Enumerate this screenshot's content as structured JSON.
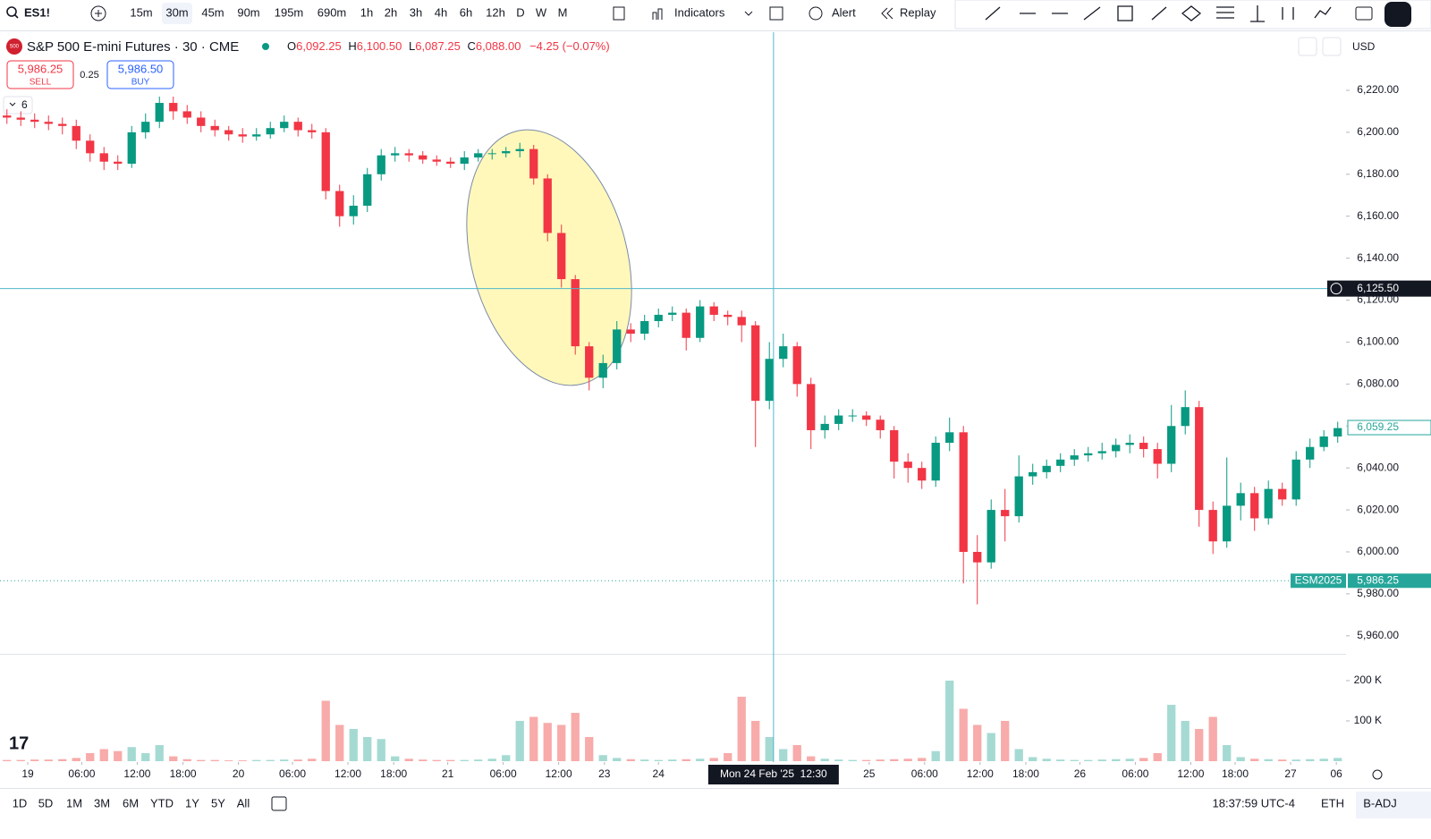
{
  "toolbar": {
    "symbol": "ES1!",
    "intervals": [
      "15m",
      "30m",
      "45m",
      "90m",
      "195m",
      "690m",
      "1h",
      "2h",
      "3h",
      "4h",
      "6h",
      "12h",
      "D",
      "W",
      "M"
    ],
    "active_index": 1,
    "indicators": "Indicators",
    "alert": "Alert",
    "replay": "Replay"
  },
  "legend": {
    "logo": "500",
    "title": "S&P 500 E-mini Futures · 30 · CME",
    "o_label": "O",
    "open": "6,092.25",
    "h_label": "H",
    "high": "6,100.50",
    "l_label": "L",
    "low": "6,087.25",
    "c_label": "C",
    "close": "6,088.00",
    "change": "−4.25 (−0.07%)"
  },
  "trade": {
    "sell_price": "5,986.25",
    "sell": "SELL",
    "spread": "0.25",
    "buy_price": "5,986.50",
    "buy": "BUY",
    "indicators_count": "6"
  },
  "currency": "USD",
  "chart_data": {
    "type": "candlestick",
    "up_color": "#089981",
    "down_color": "#f23645",
    "open": [
      6208,
      6207,
      6206,
      6205,
      6204,
      6203,
      6196,
      6190,
      6186,
      6185,
      6200,
      6205,
      6214,
      6210,
      6207,
      6203,
      6201,
      6199,
      6198,
      6199,
      6202,
      6205,
      6201,
      6200,
      6172,
      6160,
      6165,
      6180,
      6189,
      6190,
      6189,
      6187,
      6186,
      6185,
      6188,
      6190,
      6190,
      6191,
      6192,
      6178,
      6152,
      6130,
      6098,
      6083,
      6090,
      6106,
      6104,
      6110,
      6113,
      6114,
      6102,
      6117,
      6113,
      6112,
      6108,
      6072,
      6092,
      6098,
      6080,
      6058,
      6061,
      6065,
      6065,
      6063,
      6058,
      6043,
      6040,
      6034,
      6052,
      6057,
      6000,
      5995,
      6020,
      6017,
      6036,
      6038,
      6041,
      6044,
      6046,
      6047,
      6048,
      6051,
      6052,
      6049,
      6042,
      6060,
      6069,
      6020,
      6005,
      6022,
      6028,
      6016,
      6030,
      6025,
      6044,
      6050,
      6055
    ],
    "high": [
      6211,
      6210,
      6209,
      6208,
      6207,
      6206,
      6199,
      6193,
      6189,
      6203,
      6209,
      6217,
      6217,
      6213,
      6210,
      6206,
      6203,
      6202,
      6202,
      6205,
      6208,
      6207,
      6204,
      6202,
      6175,
      6170,
      6183,
      6192,
      6193,
      6192,
      6191,
      6189,
      6188,
      6191,
      6192,
      6192,
      6193,
      6195,
      6194,
      6180,
      6156,
      6132,
      6100,
      6094,
      6110,
      6109,
      6113,
      6116,
      6117,
      6116,
      6120,
      6119,
      6115,
      6115,
      6110,
      6100,
      6104,
      6100,
      6083,
      6065,
      6068,
      6068,
      6067,
      6065,
      6060,
      6047,
      6043,
      6055,
      6064,
      6060,
      6008,
      6025,
      6030,
      6046,
      6042,
      6044,
      6047,
      6049,
      6050,
      6052,
      6054,
      6056,
      6055,
      6052,
      6070,
      6077,
      6072,
      6024,
      6045,
      6033,
      6031,
      6034,
      6033,
      6048,
      6054,
      6058,
      6062
    ],
    "low": [
      6204,
      6203,
      6202,
      6201,
      6199,
      6192,
      6186,
      6182,
      6182,
      6183,
      6197,
      6202,
      6206,
      6204,
      6200,
      6198,
      6196,
      6195,
      6196,
      6197,
      6200,
      6198,
      6197,
      6168,
      6155,
      6156,
      6162,
      6177,
      6186,
      6186,
      6185,
      6184,
      6183,
      6182,
      6186,
      6187,
      6188,
      6188,
      6175,
      6148,
      6126,
      6094,
      6077,
      6078,
      6087,
      6100,
      6101,
      6107,
      6110,
      6096,
      6100,
      6110,
      6108,
      6100,
      6050,
      6068,
      6088,
      6074,
      6049,
      6054,
      6058,
      6062,
      6060,
      6054,
      6035,
      6033,
      6030,
      6031,
      6048,
      5985,
      5975,
      5992,
      6005,
      6014,
      6032,
      6035,
      6038,
      6041,
      6043,
      6044,
      6045,
      6047,
      6045,
      6035,
      6038,
      6056,
      6012,
      5999,
      6002,
      6015,
      6010,
      6013,
      6022,
      6022,
      6040,
      6048,
      6052
    ],
    "close": [
      6207,
      6206,
      6205,
      6204,
      6203,
      6196,
      6190,
      6186,
      6185,
      6200,
      6205,
      6214,
      6210,
      6207,
      6203,
      6201,
      6199,
      6198,
      6199,
      6202,
      6205,
      6201,
      6200,
      6172,
      6160,
      6165,
      6180,
      6189,
      6190,
      6189,
      6187,
      6186,
      6185,
      6188,
      6190,
      6190,
      6191,
      6192,
      6178,
      6152,
      6130,
      6098,
      6083,
      6090,
      6106,
      6104,
      6110,
      6113,
      6114,
      6102,
      6117,
      6113,
      6112,
      6108,
      6072,
      6092,
      6098,
      6080,
      6058,
      6061,
      6065,
      6065,
      6063,
      6058,
      6043,
      6040,
      6034,
      6052,
      6057,
      6000,
      5995,
      6020,
      6017,
      6036,
      6038,
      6041,
      6044,
      6046,
      6047,
      6048,
      6051,
      6052,
      6049,
      6042,
      6060,
      6069,
      6020,
      6005,
      6022,
      6028,
      6016,
      6030,
      6025,
      6044,
      6050,
      6055,
      6059
    ],
    "xlim": [
      -0.5,
      96.6
    ],
    "ylim": [
      5951.4,
      6247.7
    ],
    "yticks": [
      {
        "value": 6220,
        "label": "6,220.00"
      },
      {
        "value": 6200,
        "label": "6,200.00"
      },
      {
        "value": 6180,
        "label": "6,180.00"
      },
      {
        "value": 6160,
        "label": "6,160.00"
      },
      {
        "value": 6140,
        "label": "6,140.00"
      },
      {
        "value": 6120,
        "label": "6,120.00"
      },
      {
        "value": 6100,
        "label": "6,100.00"
      },
      {
        "value": 6080,
        "label": "6,080.00"
      },
      {
        "value": 6060,
        "label": "6,060.00"
      },
      {
        "value": 6040,
        "label": "6,040.00"
      },
      {
        "value": 6020,
        "label": "6,020.00"
      },
      {
        "value": 6000,
        "label": "6,000.00"
      },
      {
        "value": 5980,
        "label": "5,980.00"
      },
      {
        "value": 5960,
        "label": "5,960.00"
      }
    ],
    "xticks": [
      {
        "value": 1.5,
        "label": "19"
      },
      {
        "value": 5.4,
        "label": "06:00"
      },
      {
        "value": 9.4,
        "label": "12:00"
      },
      {
        "value": 12.7,
        "label": "18:00"
      },
      {
        "value": 16.7,
        "label": "20"
      },
      {
        "value": 20.6,
        "label": "06:00"
      },
      {
        "value": 24.6,
        "label": "12:00"
      },
      {
        "value": 27.9,
        "label": "18:00"
      },
      {
        "value": 31.8,
        "label": "21"
      },
      {
        "value": 35.8,
        "label": "06:00"
      },
      {
        "value": 39.8,
        "label": "12:00"
      },
      {
        "value": 43.1,
        "label": "23"
      },
      {
        "value": 47.0,
        "label": "24"
      },
      {
        "value": 62.2,
        "label": "25"
      },
      {
        "value": 66.2,
        "label": "06:00"
      },
      {
        "value": 70.2,
        "label": "12:00"
      },
      {
        "value": 73.5,
        "label": "18:00"
      },
      {
        "value": 77.4,
        "label": "26"
      },
      {
        "value": 81.4,
        "label": "06:00"
      },
      {
        "value": 85.4,
        "label": "12:00"
      },
      {
        "value": 88.6,
        "label": "18:00"
      },
      {
        "value": 92.6,
        "label": "27"
      },
      {
        "value": 95.9,
        "label": "06"
      }
    ],
    "crosshair": {
      "price": 6125.5,
      "price_label": "6,125.50",
      "x": 55.3,
      "time_label": "Mon 24 Feb '25  12:30"
    },
    "last_price": {
      "value": 6059.25,
      "label": "6,059.25"
    },
    "bid_line": {
      "value": 5986.25,
      "name": "ESM2025",
      "label": "5,986.25"
    },
    "volume": {
      "values": [
        3,
        3,
        4,
        4,
        5,
        8,
        20,
        30,
        25,
        35,
        20,
        40,
        12,
        5,
        3,
        3,
        2,
        2,
        3,
        3,
        4,
        4,
        6,
        150,
        90,
        80,
        60,
        55,
        12,
        6,
        4,
        3,
        3,
        3,
        4,
        6,
        15,
        100,
        110,
        95,
        90,
        120,
        60,
        15,
        8,
        5,
        4,
        3,
        4,
        5,
        6,
        8,
        20,
        160,
        100,
        60,
        30,
        40,
        12,
        6,
        4,
        3,
        3,
        4,
        5,
        6,
        8,
        25,
        200,
        130,
        90,
        70,
        100,
        30,
        10,
        6,
        4,
        3,
        3,
        4,
        5,
        6,
        8,
        20,
        140,
        100,
        80,
        110,
        40,
        10,
        6,
        5,
        4,
        4,
        5,
        6,
        8
      ],
      "ylim": [
        0,
        262
      ],
      "yticks": [
        {
          "value": 200,
          "label": "200 K"
        },
        {
          "value": 100,
          "label": "100 K"
        }
      ],
      "up_color": "#a5dad3",
      "down_color": "#f7abaa"
    }
  },
  "bottom_bar": {
    "ranges": [
      "1D",
      "5D",
      "1M",
      "3M",
      "6M",
      "YTD",
      "1Y",
      "5Y",
      "All"
    ],
    "time": "18:37:59 UTC-4",
    "session": "ETH",
    "adjust": "B-ADJ"
  }
}
